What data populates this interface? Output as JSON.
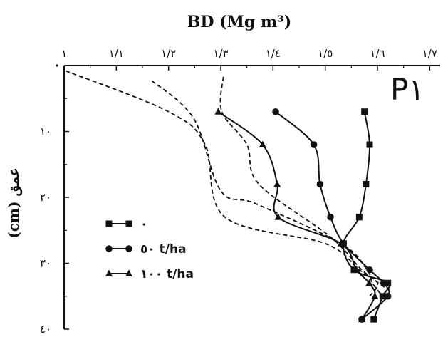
{
  "chart_data": {
    "type": "line",
    "title": "BD (Mg m³)",
    "ylabel": "(cm)  عمق",
    "panel_label": "P١",
    "x_ticks": [
      {
        "v": 1.0,
        "label": "١"
      },
      {
        "v": 1.1,
        "label": "١/١"
      },
      {
        "v": 1.2,
        "label": "١/٢"
      },
      {
        "v": 1.3,
        "label": "١/٣"
      },
      {
        "v": 1.4,
        "label": "١/٤"
      },
      {
        "v": 1.5,
        "label": "١/٥"
      },
      {
        "v": 1.6,
        "label": "١/٦"
      },
      {
        "v": 1.7,
        "label": "١/٧"
      }
    ],
    "y_ticks": [
      {
        "v": 10,
        "label": "١٠"
      },
      {
        "v": 20,
        "label": "٢٠"
      },
      {
        "v": 30,
        "label": "٣٠"
      },
      {
        "v": 40,
        "label": "٤٠"
      }
    ],
    "xlim": [
      1.0,
      1.72
    ],
    "ylim": [
      0,
      40
    ],
    "series": [
      {
        "name": "٠",
        "marker": "square",
        "style": "solid",
        "points": [
          [
            1.575,
            7
          ],
          [
            1.585,
            12
          ],
          [
            1.578,
            18
          ],
          [
            1.565,
            23
          ],
          [
            1.535,
            27
          ],
          [
            1.555,
            31
          ],
          [
            1.62,
            33
          ],
          [
            1.61,
            35
          ],
          [
            1.593,
            38.5
          ]
        ]
      },
      {
        "name": "٥٠ t/ha",
        "marker": "circle",
        "style": "solid",
        "points": [
          [
            1.405,
            7
          ],
          [
            1.478,
            12
          ],
          [
            1.49,
            18
          ],
          [
            1.51,
            23
          ],
          [
            1.535,
            27
          ],
          [
            1.585,
            31
          ],
          [
            1.612,
            33
          ],
          [
            1.62,
            35
          ],
          [
            1.57,
            38.5
          ]
        ]
      },
      {
        "name": "١٠٠ t/ha",
        "marker": "triangle",
        "style": "solid",
        "points": [
          [
            1.295,
            7
          ],
          [
            1.38,
            12
          ],
          [
            1.408,
            18
          ],
          [
            1.41,
            23
          ],
          [
            1.53,
            27
          ],
          [
            1.56,
            31
          ],
          [
            1.584,
            33
          ],
          [
            1.595,
            35
          ],
          [
            1.57,
            38.5
          ]
        ]
      },
      {
        "name": "",
        "marker": "none",
        "style": "dashed",
        "points": [
          [
            1.003,
            0.8
          ],
          [
            1.2,
            7
          ],
          [
            1.27,
            12
          ],
          [
            1.308,
            23
          ],
          [
            1.5,
            27
          ],
          [
            1.565,
            31
          ],
          [
            1.6,
            33
          ],
          [
            1.585,
            35
          ]
        ]
      },
      {
        "name": "",
        "marker": "none",
        "style": "dashed",
        "points": [
          [
            1.168,
            2.3
          ],
          [
            1.248,
            8
          ],
          [
            1.3,
            19
          ],
          [
            1.368,
            21
          ],
          [
            1.53,
            27
          ],
          [
            1.58,
            31
          ],
          [
            1.59,
            33
          ],
          [
            1.61,
            35
          ]
        ]
      },
      {
        "name": "",
        "marker": "none",
        "style": "dashed",
        "points": [
          [
            1.305,
            1.7
          ],
          [
            1.302,
            7
          ],
          [
            1.35,
            12
          ],
          [
            1.373,
            18
          ],
          [
            1.51,
            26
          ],
          [
            1.57,
            31
          ],
          [
            1.62,
            34
          ]
        ]
      }
    ],
    "legend": {
      "position": "middle-left",
      "entries": [
        {
          "marker": "square",
          "label": "٠"
        },
        {
          "marker": "circle",
          "label": "٥٠ t/ha"
        },
        {
          "marker": "triangle",
          "label": "١٠٠ t/ha"
        }
      ]
    },
    "grid": false
  }
}
